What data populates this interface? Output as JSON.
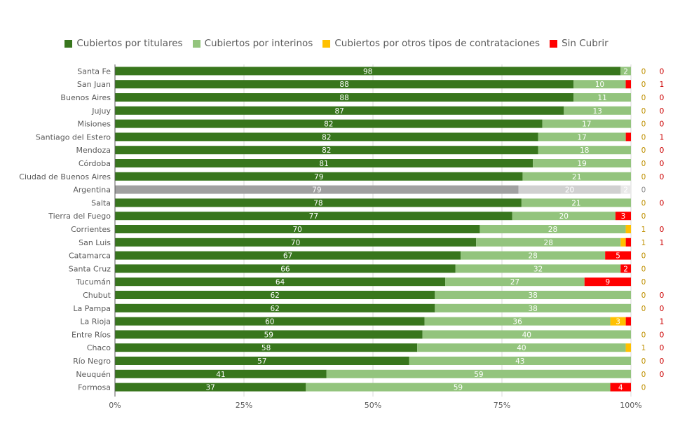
{
  "chart_data": {
    "type": "bar",
    "orientation": "horizontal",
    "stacked": "percent",
    "title": "",
    "xlabel": "",
    "ylabel": "",
    "xlim": [
      0,
      100
    ],
    "x_ticks": [
      "0%",
      "25%",
      "50%",
      "75%",
      "100%"
    ],
    "grid": true,
    "legend_position": "top",
    "categories": [
      "Santa Fe",
      "San Juan",
      "Buenos Aires",
      "Jujuy",
      "Misiones",
      "Santiago del Estero",
      "Mendoza",
      "Córdoba",
      "Ciudad de Buenos Aires",
      "Argentina",
      "Salta",
      "Tierra del Fuego",
      "Corrientes",
      "San Luis",
      "Catamarca",
      "Santa Cruz",
      "Tucumán",
      "Chubut",
      "La Pampa",
      "La Rioja",
      "Entre Ríos",
      "Chaco",
      "Río Negro",
      "Neuquén",
      "Formosa"
    ],
    "highlight_category": "Argentina",
    "highlight_colors": [
      "#a0a0a0",
      "#d0d0d0",
      "#e0e0e0",
      "#e8e8e8"
    ],
    "series": [
      {
        "name": "Cubiertos por titulares",
        "color": "#38761d",
        "values": [
          98,
          88,
          88,
          87,
          82,
          82,
          82,
          81,
          79,
          79,
          78,
          77,
          70,
          70,
          67,
          66,
          64,
          62,
          62,
          60,
          59,
          58,
          57,
          41,
          37
        ]
      },
      {
        "name": "Cubiertos por interinos",
        "color": "#93c47d",
        "values": [
          2,
          10,
          11,
          13,
          17,
          17,
          18,
          19,
          21,
          20,
          21,
          20,
          28,
          28,
          28,
          32,
          27,
          38,
          38,
          36,
          40,
          40,
          43,
          59,
          59
        ]
      },
      {
        "name": "Cubiertos por otros tipos de contrataciones",
        "color": "#ffc000",
        "values": [
          0,
          0,
          0,
          0,
          0,
          0,
          0,
          0,
          0,
          0,
          0,
          0,
          1,
          1,
          0,
          0,
          0,
          0,
          0,
          3,
          0,
          1,
          0,
          0,
          0
        ]
      },
      {
        "name": "Sin Cubrir",
        "color": "#ff0000",
        "values": [
          0,
          1,
          0,
          0,
          0,
          1,
          0,
          0,
          0,
          2,
          0,
          3,
          0,
          1,
          5,
          2,
          9,
          0,
          0,
          1,
          0,
          0,
          0,
          0,
          4
        ]
      }
    ]
  }
}
